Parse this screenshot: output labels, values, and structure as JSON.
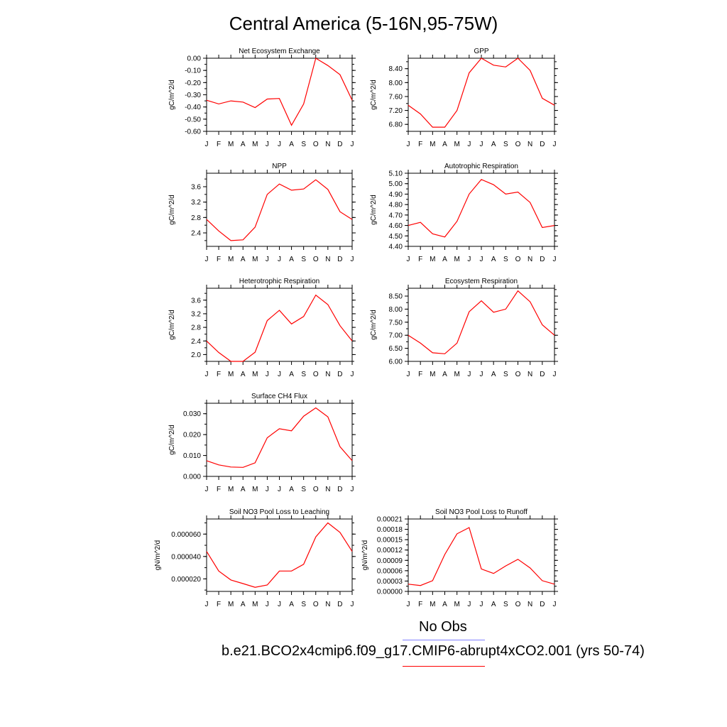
{
  "page_title": "Central America (5-16N,95-75W)",
  "colors": {
    "model_line": "#ff0000",
    "obs_line": "#8080ff",
    "axis": "#000000"
  },
  "legend": {
    "obs_label": "No Obs",
    "model_label": "b.e21.BCO2x4cmip6.f09_g17.CMIP6-abrupt4xCO2.001 (yrs 50-74)"
  },
  "chart_data": [
    {
      "type": "line",
      "title": "Net Ecosystem Exchange",
      "ylabel": "gC/m^2/d",
      "categories": [
        "J",
        "F",
        "M",
        "A",
        "M",
        "J",
        "J",
        "A",
        "S",
        "O",
        "N",
        "D",
        "J"
      ],
      "ylim": [
        -0.6,
        0.0
      ],
      "yticks": [
        "0.00",
        "-0.10",
        "-0.20",
        "-0.30",
        "-0.40",
        "-0.50",
        "-0.60"
      ],
      "ytick_values": [
        0.0,
        -0.1,
        -0.2,
        -0.3,
        -0.4,
        -0.5,
        -0.6
      ],
      "values": [
        -0.345,
        -0.375,
        -0.35,
        -0.36,
        -0.405,
        -0.335,
        -0.33,
        -0.55,
        -0.375,
        0.0,
        -0.06,
        -0.135,
        -0.345
      ]
    },
    {
      "type": "line",
      "title": "GPP",
      "ylabel": "gC/m^2/d",
      "categories": [
        "J",
        "F",
        "M",
        "A",
        "M",
        "J",
        "J",
        "A",
        "S",
        "O",
        "N",
        "D",
        "J"
      ],
      "ylim": [
        6.6,
        8.7
      ],
      "yticks": [
        "8.40",
        "8.00",
        "7.60",
        "7.20",
        "6.80"
      ],
      "ytick_values": [
        8.4,
        8.0,
        7.6,
        7.2,
        6.8
      ],
      "values": [
        7.35,
        7.1,
        6.72,
        6.72,
        7.2,
        8.28,
        8.7,
        8.5,
        8.45,
        8.7,
        8.35,
        7.55,
        7.35
      ]
    },
    {
      "type": "line",
      "title": "NPP",
      "ylabel": "gC/m^2/d",
      "categories": [
        "J",
        "F",
        "M",
        "A",
        "M",
        "J",
        "J",
        "A",
        "S",
        "O",
        "N",
        "D",
        "J"
      ],
      "ylim": [
        2.05,
        3.95
      ],
      "yticks": [
        "3.6",
        "3.2",
        "2.8",
        "2.4"
      ],
      "ytick_values": [
        3.6,
        3.2,
        2.8,
        2.4
      ],
      "values": [
        2.75,
        2.45,
        2.2,
        2.22,
        2.55,
        3.4,
        3.67,
        3.51,
        3.54,
        3.78,
        3.53,
        2.95,
        2.75
      ]
    },
    {
      "type": "line",
      "title": "Autotrophic Respiration",
      "ylabel": "gC/m^2/d",
      "categories": [
        "J",
        "F",
        "M",
        "A",
        "M",
        "J",
        "J",
        "A",
        "S",
        "O",
        "N",
        "D",
        "J"
      ],
      "ylim": [
        4.4,
        5.1
      ],
      "yticks": [
        "5.10",
        "5.00",
        "4.90",
        "4.80",
        "4.70",
        "4.60",
        "4.50",
        "4.40"
      ],
      "ytick_values": [
        5.1,
        5.0,
        4.9,
        4.8,
        4.7,
        4.6,
        4.5,
        4.4
      ],
      "values": [
        4.6,
        4.63,
        4.52,
        4.49,
        4.64,
        4.9,
        5.04,
        4.99,
        4.9,
        4.92,
        4.82,
        4.58,
        4.6
      ]
    },
    {
      "type": "line",
      "title": "Heterotrophic Respiration",
      "ylabel": "gC/m^2/d",
      "categories": [
        "J",
        "F",
        "M",
        "A",
        "M",
        "J",
        "J",
        "A",
        "S",
        "O",
        "N",
        "D",
        "J"
      ],
      "ylim": [
        1.8,
        3.95
      ],
      "yticks": [
        "3.6",
        "3.2",
        "2.8",
        "2.4",
        "2.0"
      ],
      "ytick_values": [
        3.6,
        3.2,
        2.8,
        2.4,
        2.0
      ],
      "values": [
        2.4,
        2.06,
        1.8,
        1.8,
        2.07,
        3.0,
        3.3,
        2.9,
        3.12,
        3.75,
        3.47,
        2.85,
        2.4
      ]
    },
    {
      "type": "line",
      "title": "Ecosystem Respiration",
      "ylabel": "gC/m^2/d",
      "categories": [
        "J",
        "F",
        "M",
        "A",
        "M",
        "J",
        "J",
        "A",
        "S",
        "O",
        "N",
        "D",
        "J"
      ],
      "ylim": [
        6.0,
        8.8
      ],
      "yticks": [
        "8.50",
        "8.00",
        "7.50",
        "7.00",
        "6.50",
        "6.00"
      ],
      "ytick_values": [
        8.5,
        8.0,
        7.5,
        7.0,
        6.5,
        6.0
      ],
      "values": [
        7.0,
        6.7,
        6.33,
        6.29,
        6.7,
        7.9,
        8.32,
        7.88,
        8.0,
        8.7,
        8.28,
        7.4,
        7.0
      ]
    },
    {
      "type": "line",
      "title": "Surface CH4 Flux",
      "ylabel": "gC/m^2/d",
      "categories": [
        "J",
        "F",
        "M",
        "A",
        "M",
        "J",
        "J",
        "A",
        "S",
        "O",
        "N",
        "D",
        "J"
      ],
      "ylim": [
        0.0,
        0.035
      ],
      "yticks": [
        "0.030",
        "0.020",
        "0.010",
        "0.000"
      ],
      "ytick_values": [
        0.03,
        0.02,
        0.01,
        0.0
      ],
      "values": [
        0.0075,
        0.0055,
        0.0045,
        0.0043,
        0.0065,
        0.0185,
        0.0228,
        0.0218,
        0.0288,
        0.0328,
        0.0285,
        0.0142,
        0.0075
      ]
    },
    {
      "type": "line",
      "title": "Soil NO3 Pool Loss to Leaching",
      "ylabel": "gN/m^2/d",
      "categories": [
        "J",
        "F",
        "M",
        "A",
        "M",
        "J",
        "J",
        "A",
        "S",
        "O",
        "N",
        "D",
        "J"
      ],
      "ylim": [
        8.8e-06,
        7.35e-05
      ],
      "yticks": [
        "0.000060",
        "0.000040",
        "0.000020"
      ],
      "ytick_values": [
        6e-05,
        4e-05,
        2e-05
      ],
      "values": [
        4.45e-05,
        2.7e-05,
        1.9e-05,
        1.58e-05,
        1.25e-05,
        1.45e-05,
        2.7e-05,
        2.7e-05,
        3.3e-05,
        5.75e-05,
        7e-05,
        6.15e-05,
        4.45e-05
      ]
    },
    {
      "type": "line",
      "title": "Soil NO3 Pool Loss to Runoff",
      "ylabel": "gN/m^2/d",
      "categories": [
        "J",
        "F",
        "M",
        "A",
        "M",
        "J",
        "J",
        "A",
        "S",
        "O",
        "N",
        "D",
        "J"
      ],
      "ylim": [
        0.0,
        0.00021
      ],
      "yticks": [
        "0.00021",
        "0.00018",
        "0.00015",
        "0.00012",
        "0.00009",
        "0.00006",
        "0.00003",
        "0.00000"
      ],
      "ytick_values": [
        0.00021,
        0.00018,
        0.00015,
        0.00012,
        9e-05,
        6e-05,
        3e-05,
        0.0
      ],
      "values": [
        2.1e-05,
        1.7e-05,
        3.1e-05,
        0.000107,
        0.000167,
        0.000185,
        6.5e-05,
        5.2e-05,
        7.4e-05,
        9.3e-05,
        6.8e-05,
        3.1e-05,
        2.1e-05
      ]
    }
  ]
}
